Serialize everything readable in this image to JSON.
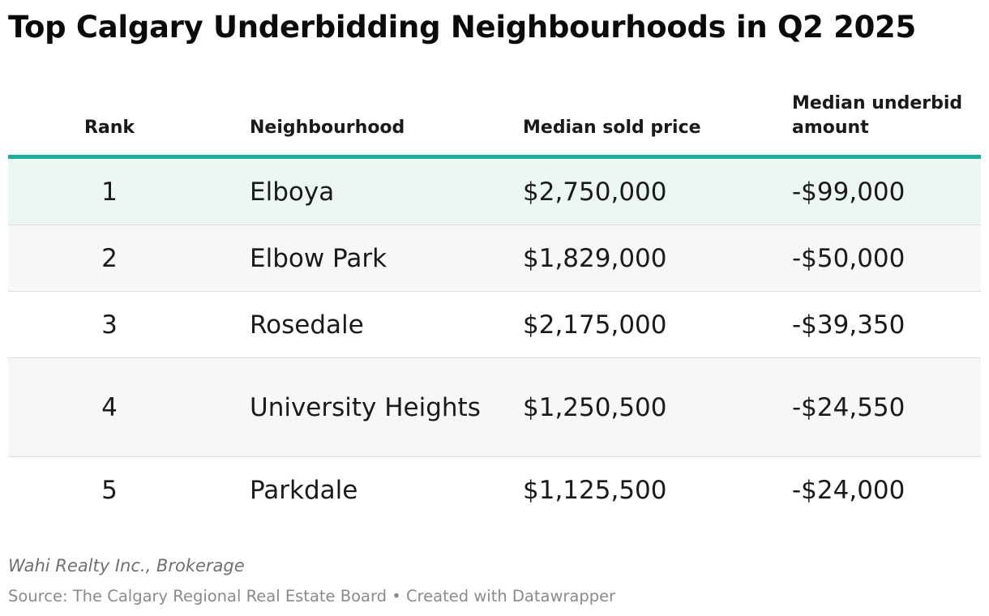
{
  "chart_data": {
    "type": "table",
    "title": "Top Calgary Underbidding Neighbourhoods in Q2 2025",
    "columns": [
      "Rank",
      "Neighbourhood",
      "Median sold price",
      "Median underbid amount"
    ],
    "rows": [
      {
        "rank": "1",
        "neighbourhood": "Elboya",
        "median_sold_price": "$2,750,000",
        "median_underbid_amount": "-$99,000"
      },
      {
        "rank": "2",
        "neighbourhood": "Elbow Park",
        "median_sold_price": "$1,829,000",
        "median_underbid_amount": "-$50,000"
      },
      {
        "rank": "3",
        "neighbourhood": "Rosedale",
        "median_sold_price": "$2,175,000",
        "median_underbid_amount": "-$39,350"
      },
      {
        "rank": "4",
        "neighbourhood": "University Heights",
        "median_sold_price": "$1,250,500",
        "median_underbid_amount": "-$24,550"
      },
      {
        "rank": "5",
        "neighbourhood": "Parkdale",
        "median_sold_price": "$1,125,500",
        "median_underbid_amount": "-$24,000"
      }
    ],
    "header_rule_color": "#1dae9a",
    "highlight_row_color": "#ecf7f1",
    "stripe_color": "#f7f7f7"
  },
  "footer": {
    "byline": "Wahi Realty Inc., Brokerage",
    "source": "Source: The Calgary Regional Real Estate Board • Created with Datawrapper"
  }
}
